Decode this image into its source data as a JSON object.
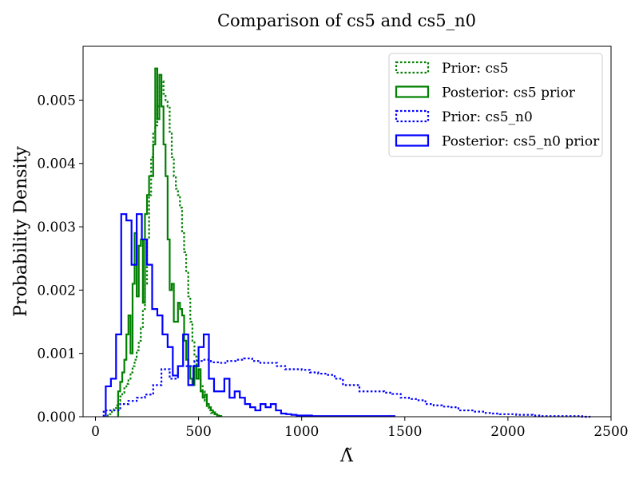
{
  "chart_data": {
    "type": "histogram-step",
    "title": "Comparison of cs5 and cs5_n0",
    "xlabel": "Λ̃",
    "ylabel": "Probability Density",
    "xlim": [
      -60,
      2500
    ],
    "ylim": [
      0,
      0.00585
    ],
    "xticks": [
      0,
      500,
      1000,
      1500,
      2000,
      2500
    ],
    "xtick_labels": [
      "0",
      "500",
      "1000",
      "1500",
      "2000",
      "2500"
    ],
    "yticks": [
      0,
      0.001,
      0.002,
      0.003,
      0.004,
      0.005
    ],
    "ytick_labels": [
      "0.000",
      "0.001",
      "0.002",
      "0.003",
      "0.004",
      "0.005"
    ],
    "grid": false,
    "legend_position": "top-right",
    "series": [
      {
        "name": "Prior: cs5",
        "color": "#008000",
        "style": "dotted",
        "bin_width": 10,
        "x": [
          60,
          70,
          80,
          90,
          100,
          110,
          120,
          130,
          140,
          150,
          160,
          170,
          180,
          190,
          200,
          210,
          220,
          230,
          240,
          250,
          260,
          270,
          280,
          290,
          300,
          310,
          320,
          330,
          340,
          350,
          360,
          370,
          380,
          390,
          400,
          410,
          420,
          430,
          440,
          450,
          460,
          470,
          480,
          490,
          500,
          510,
          520,
          530,
          540,
          550,
          560,
          570,
          580,
          590,
          600
        ],
        "y": [
          2e-05,
          4e-05,
          8e-05,
          0.00012,
          0.00018,
          0.00025,
          0.00032,
          0.00038,
          0.00045,
          0.00052,
          0.0006,
          0.0007,
          0.0008,
          0.0009,
          0.00105,
          0.0012,
          0.0014,
          0.0017,
          0.0021,
          0.0028,
          0.0035,
          0.0041,
          0.0045,
          0.0046,
          0.0049,
          0.0052,
          0.0053,
          0.0051,
          0.005,
          0.0049,
          0.0045,
          0.0041,
          0.0038,
          0.0036,
          0.0035,
          0.0033,
          0.0029,
          0.0026,
          0.0023,
          0.0019,
          0.0015,
          0.0012,
          0.00095,
          0.0008,
          0.00058,
          0.0005,
          0.0004,
          0.00025,
          0.00015,
          0.0001,
          6e-05,
          4e-05,
          3e-05,
          2e-05,
          1e-05
        ]
      },
      {
        "name": "Posterior: cs5 prior",
        "color": "#008000",
        "style": "solid",
        "bin_width": 10,
        "x": [
          110,
          120,
          130,
          140,
          150,
          160,
          170,
          180,
          190,
          200,
          210,
          220,
          230,
          240,
          250,
          260,
          270,
          280,
          290,
          300,
          310,
          320,
          330,
          340,
          350,
          360,
          370,
          380,
          390,
          400,
          410,
          420,
          430,
          440,
          450,
          460,
          470,
          480,
          490,
          500,
          510,
          520,
          530,
          540,
          550,
          560,
          570,
          580,
          590,
          600
        ],
        "y": [
          0.0004,
          0.00055,
          0.0007,
          0.0009,
          0.0013,
          0.0016,
          0.001,
          0.0021,
          0.0029,
          0.0019,
          0.0027,
          0.0028,
          0.0018,
          0.0032,
          0.0035,
          0.0038,
          0.0038,
          0.0043,
          0.0055,
          0.0047,
          0.0054,
          0.0049,
          0.0043,
          0.0038,
          0.0028,
          0.002,
          0.0021,
          0.0015,
          0.0015,
          0.0018,
          0.0017,
          0.0016,
          0.0012,
          0.0009,
          0.0008,
          0.0006,
          0.0005,
          0.0008,
          0.0006,
          0.00075,
          0.0004,
          0.0003,
          0.00035,
          0.0002,
          0.00015,
          0.0001,
          7e-05,
          4e-05,
          2e-05,
          1e-05
        ]
      },
      {
        "name": "Prior: cs5_n0",
        "color": "#0000ff",
        "style": "dotted",
        "bin_width": 40,
        "x": [
          40,
          80,
          120,
          160,
          200,
          240,
          280,
          320,
          360,
          400,
          440,
          480,
          520,
          560,
          600,
          640,
          680,
          720,
          760,
          800,
          840,
          880,
          920,
          960,
          1000,
          1040,
          1080,
          1120,
          1160,
          1200,
          1240,
          1280,
          1320,
          1360,
          1400,
          1440,
          1480,
          1520,
          1560,
          1600,
          1640,
          1680,
          1720,
          1760,
          1800,
          1840,
          1880,
          1920,
          1960,
          2000,
          2040,
          2080,
          2120,
          2160,
          2200,
          2240,
          2280,
          2320,
          2360
        ],
        "y": [
          0.0001,
          0.0001,
          0.0002,
          0.00025,
          0.0003,
          0.00035,
          0.0005,
          0.00075,
          0.0006,
          0.0008,
          0.0008,
          0.00088,
          0.0009,
          0.00086,
          0.00085,
          0.00088,
          0.0009,
          0.00092,
          0.00088,
          0.00085,
          0.00085,
          0.0008,
          0.00075,
          0.00075,
          0.00074,
          0.0007,
          0.00068,
          0.00066,
          0.0006,
          0.0005,
          0.0005,
          0.0004,
          0.0004,
          0.0004,
          0.00038,
          0.00036,
          0.0003,
          0.00028,
          0.00026,
          0.0002,
          0.00018,
          0.00016,
          0.00015,
          0.0001,
          0.0001,
          8e-05,
          6e-05,
          5e-05,
          4e-05,
          4e-05,
          3e-05,
          3e-05,
          2e-05,
          1e-05,
          1e-05,
          1e-05,
          1e-05,
          1e-05,
          0.0
        ]
      },
      {
        "name": "Posterior: cs5_n0 prior",
        "color": "#0000ff",
        "style": "solid",
        "bin_width": 25,
        "x": [
          50,
          75,
          100,
          125,
          150,
          175,
          200,
          225,
          250,
          275,
          300,
          325,
          350,
          375,
          400,
          425,
          450,
          475,
          500,
          525,
          550,
          575,
          600,
          625,
          650,
          675,
          700,
          725,
          750,
          775,
          800,
          825,
          850,
          875,
          900,
          925,
          950,
          975,
          1000,
          1025,
          1050,
          1075,
          1100,
          1125,
          1150,
          1175,
          1200,
          1225,
          1250,
          1275,
          1300,
          1325,
          1350,
          1375,
          1400,
          1425
        ],
        "y": [
          0.00048,
          0.0006,
          0.0013,
          0.0032,
          0.0031,
          0.0024,
          0.0032,
          0.0028,
          0.0024,
          0.0017,
          0.0016,
          0.0013,
          0.0011,
          0.00065,
          0.0008,
          0.0013,
          0.0005,
          0.0008,
          0.0011,
          0.0013,
          0.0006,
          0.0004,
          0.0004,
          0.0006,
          0.0003,
          0.0004,
          0.0003,
          0.0002,
          0.00015,
          0.0001,
          0.0002,
          0.00015,
          0.0002,
          0.0001,
          5e-05,
          4e-05,
          3e-05,
          2e-05,
          2e-05,
          2e-05,
          1e-05,
          1e-05,
          1e-05,
          1e-05,
          1e-05,
          1e-05,
          1e-05,
          1e-05,
          1e-05,
          1e-05,
          1e-05,
          1e-05,
          1e-05,
          1e-05,
          1e-05,
          1e-05
        ]
      }
    ]
  }
}
